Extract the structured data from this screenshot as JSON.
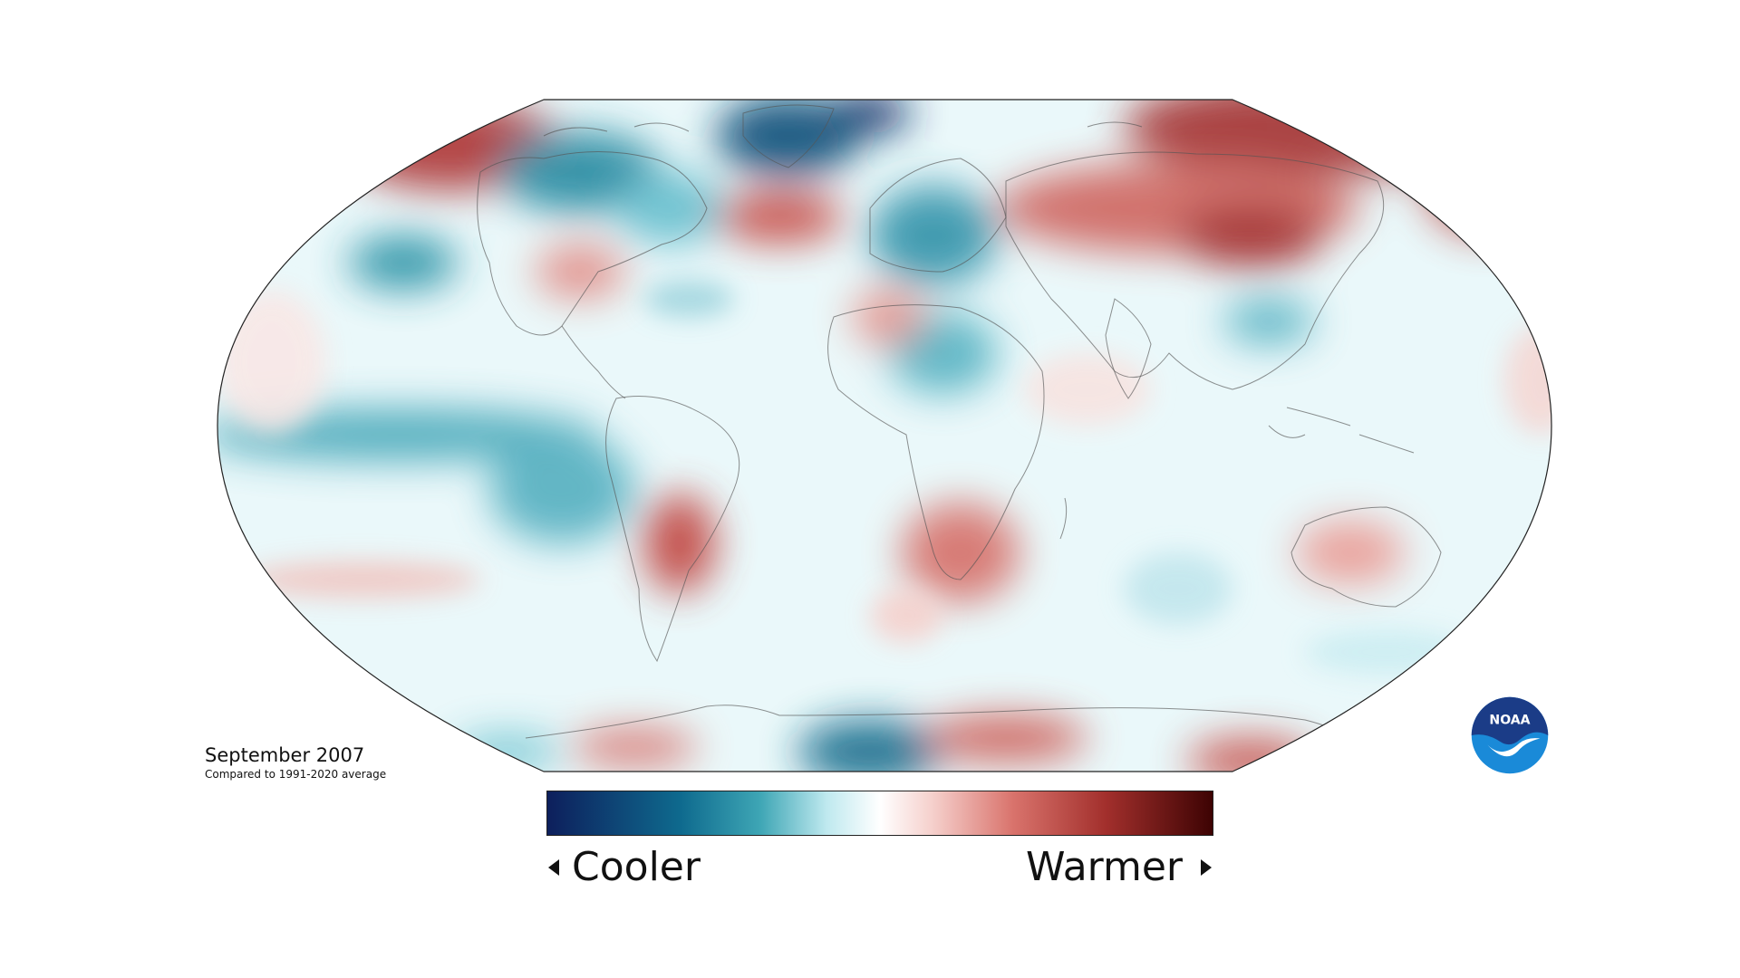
{
  "caption": {
    "title": "September 2007",
    "subtitle": "Compared to 1991-2020 average"
  },
  "legend": {
    "cooler_label": "Cooler",
    "warmer_label": "Warmer",
    "gradient_colors": [
      "#0d1f5c",
      "#0e5c8c",
      "#1a8aa0",
      "#8fd3dd",
      "#e6f6f8",
      "#ffffff",
      "#f7d9d6",
      "#e08a82",
      "#c04a44",
      "#8a1a1a",
      "#4a0505"
    ]
  },
  "logo": {
    "text": "NOAA",
    "primary_color": "#1b3c87",
    "secondary_color": "#1a8ad8"
  },
  "colors": {
    "cool_strong": "#1a4f8a",
    "cool_mid": "#2a9aaa",
    "cool_light": "#bfe8ee",
    "neutral": "#f2fbfc",
    "warm_light": "#f5d3cf",
    "warm_mid": "#d9756e",
    "warm_strong": "#9a2626"
  }
}
